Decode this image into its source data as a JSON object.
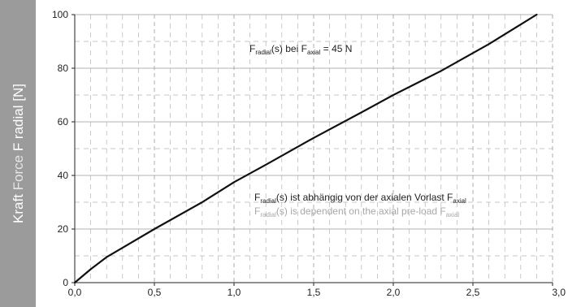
{
  "chart_data": {
    "type": "line",
    "title": "",
    "xlabel": "",
    "ylabel_parts": [
      {
        "text": "Kraft ",
        "color": "#ffffff"
      },
      {
        "text": "Force ",
        "color": "#e6e6e6"
      },
      {
        "text": "F radial [N]",
        "color": "#ffffff"
      }
    ],
    "xlim": [
      0,
      3
    ],
    "ylim": [
      0,
      100
    ],
    "x_ticks": [
      0,
      0.5,
      1.0,
      1.5,
      2.0,
      2.5,
      3.0
    ],
    "x_tick_labels": [
      "0,0",
      "0,5",
      "1,0",
      "1,5",
      "2,0",
      "2,5",
      "3,0"
    ],
    "y_ticks": [
      0,
      20,
      40,
      60,
      80,
      100
    ],
    "y_tick_labels": [
      "0",
      "20",
      "40",
      "60",
      "80",
      "100"
    ],
    "grid": true,
    "series": [
      {
        "color": "#111111",
        "x": [
          0,
          0.1,
          0.2,
          0.3,
          0.5,
          0.8,
          1.0,
          1.2,
          1.5,
          1.8,
          2.0,
          2.3,
          2.6,
          2.9
        ],
        "y": [
          0,
          5,
          9.5,
          13,
          20,
          30,
          37.5,
          44,
          54,
          63.5,
          70,
          79,
          89,
          100
        ]
      }
    ],
    "annotations": [
      {
        "id": "anno-preload-45n",
        "color": "#222222",
        "parts": [
          {
            "text": "F"
          },
          {
            "text": "radial",
            "sub": true
          },
          {
            "text": "(s) bei F"
          },
          {
            "text": "axial",
            "sub": true
          },
          {
            "text": " = 45 N"
          }
        ]
      },
      {
        "id": "anno-dependency-de",
        "color": "#222222",
        "parts": [
          {
            "text": "F"
          },
          {
            "text": "radial",
            "sub": true
          },
          {
            "text": "(s) ist abhängig von der axialen Vorlast F"
          },
          {
            "text": "axial",
            "sub": true
          }
        ]
      },
      {
        "id": "anno-dependency-en",
        "color": "#a8a8a8",
        "parts": [
          {
            "text": "F"
          },
          {
            "text": "radial",
            "sub": true
          },
          {
            "text": "(s) is dependent on the axial pre-load F"
          },
          {
            "text": "axial",
            "sub": true
          }
        ]
      }
    ]
  },
  "colors": {
    "ylabel_panel": "#9b9b9b",
    "plot_background": "#ffffff",
    "grid_major": "#9a9a9a",
    "grid_minor": "#b5b5b5"
  }
}
